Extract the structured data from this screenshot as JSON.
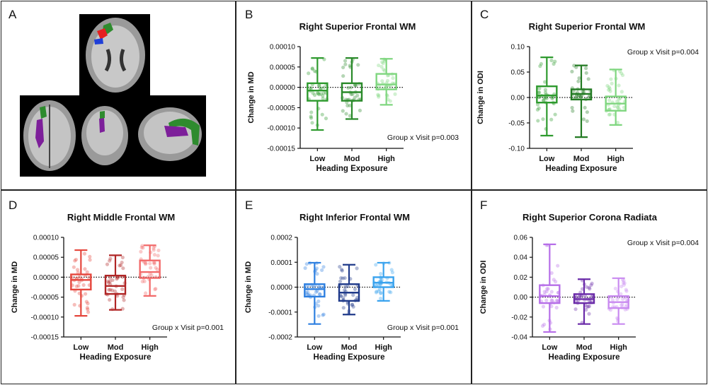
{
  "panels": [
    {
      "letter": "A"
    },
    {
      "letter": "B"
    },
    {
      "letter": "C"
    },
    {
      "letter": "D"
    },
    {
      "letter": "E"
    },
    {
      "letter": "F"
    }
  ],
  "brain_panel": {
    "description_label": "brain MRI slices",
    "highlight_colors": {
      "green": "#2e8b2e",
      "red": "#e52020",
      "blue": "#1f3fd8",
      "purple": "#7d1f9a"
    }
  },
  "chart_data": [
    {
      "panel": "B",
      "type": "box",
      "title": "Right Superior Frontal WM",
      "xlabel": "Heading Exposure",
      "ylabel": "Change in MD",
      "categories": [
        "Low",
        "Mod",
        "High"
      ],
      "ylim": [
        -0.00015,
        0.0001
      ],
      "yticks": [
        0.0001,
        5e-05,
        0.0,
        -5e-05,
        -0.0001,
        -0.00015
      ],
      "ytick_labels": [
        "0.00010",
        "0.00005",
        "0.00000",
        "-0.00005",
        "-0.00010",
        "-0.00015"
      ],
      "annotation": "Group x Visit p=0.003",
      "annotation_pos": "bottom-right",
      "colors": [
        "#2e9a2e",
        "#2a8a2a",
        "#7fd67f"
      ],
      "boxes": [
        {
          "min": -0.000105,
          "q1": -3.3e-05,
          "median": -8e-06,
          "q3": 1e-05,
          "max": 7.2e-05
        },
        {
          "min": -7.8e-05,
          "q1": -3.3e-05,
          "median": -1.2e-05,
          "q3": 1e-05,
          "max": 7.2e-05
        },
        {
          "min": -4.3e-05,
          "q1": -5e-06,
          "median": 7e-06,
          "q3": 3.3e-05,
          "max": 7e-05
        }
      ]
    },
    {
      "panel": "C",
      "type": "box",
      "title": "Right Superior Frontal WM",
      "xlabel": "Heading Exposure",
      "ylabel": "Change in ODI",
      "categories": [
        "Low",
        "Mod",
        "High"
      ],
      "ylim": [
        -0.1,
        0.1
      ],
      "yticks": [
        0.1,
        0.05,
        0.0,
        -0.05,
        -0.1
      ],
      "ytick_labels": [
        "0.10",
        "0.05",
        "0.00",
        "-0.05",
        "-0.10"
      ],
      "annotation": "Group x Visit p=0.004",
      "annotation_pos": "top-right",
      "colors": [
        "#2e9a2e",
        "#227a22",
        "#7fd67f"
      ],
      "boxes": [
        {
          "min": -0.075,
          "q1": -0.01,
          "median": 0.004,
          "q3": 0.022,
          "max": 0.079
        },
        {
          "min": -0.078,
          "q1": -0.004,
          "median": 0.007,
          "q3": 0.016,
          "max": 0.063
        },
        {
          "min": -0.054,
          "q1": -0.026,
          "median": -0.012,
          "q3": 0.002,
          "max": 0.055
        }
      ]
    },
    {
      "panel": "D",
      "type": "box",
      "title": "Right Middle Frontal WM",
      "xlabel": "Heading Exposure",
      "ylabel": "Change in MD",
      "categories": [
        "Low",
        "Mod",
        "High"
      ],
      "ylim": [
        -0.00015,
        0.0001
      ],
      "yticks": [
        0.0001,
        5e-05,
        0.0,
        -5e-05,
        -0.0001,
        -0.00015
      ],
      "ytick_labels": [
        "0.00010",
        "0.00005",
        "0.00000",
        "-0.00005",
        "-0.00010",
        "-0.00015"
      ],
      "annotation": "Group x Visit p=0.001",
      "annotation_pos": "bottom-right",
      "colors": [
        "#e5463c",
        "#b02525",
        "#f26a6a"
      ],
      "boxes": [
        {
          "min": -9.7e-05,
          "q1": -3.1e-05,
          "median": -7e-06,
          "q3": 7e-06,
          "max": 6.8e-05
        },
        {
          "min": -8.2e-05,
          "q1": -4.2e-05,
          "median": -2.2e-05,
          "q3": 4e-06,
          "max": 5.5e-05
        },
        {
          "min": -4.7e-05,
          "q1": -2e-06,
          "median": 1.3e-05,
          "q3": 4.2e-05,
          "max": 8e-05
        }
      ]
    },
    {
      "panel": "E",
      "type": "box",
      "title": "Right Inferior Frontal WM",
      "xlabel": "Heading Exposure",
      "ylabel": "Change in MD",
      "categories": [
        "Low",
        "Mod",
        "High"
      ],
      "ylim": [
        -0.0002,
        0.0002
      ],
      "yticks": [
        0.0002,
        0.0001,
        0.0,
        -0.0001,
        -0.0002
      ],
      "ytick_labels": [
        "0.0002",
        "0.0001",
        "0.0000",
        "-0.0001",
        "-0.0002"
      ],
      "annotation": "Group x Visit p=0.001",
      "annotation_pos": "bottom-right",
      "colors": [
        "#2d7fe0",
        "#1f3a8a",
        "#3aa3ee"
      ],
      "boxes": [
        {
          "min": -0.000148,
          "q1": -3.8e-05,
          "median": -8e-06,
          "q3": 1.2e-05,
          "max": 9.8e-05
        },
        {
          "min": -0.00011,
          "q1": -5.5e-05,
          "median": -2.2e-05,
          "q3": 1.2e-05,
          "max": 9e-05
        },
        {
          "min": -5.5e-05,
          "q1": 0.0,
          "median": 1.8e-05,
          "q3": 4e-05,
          "max": 9.8e-05
        }
      ]
    },
    {
      "panel": "F",
      "type": "box",
      "title": "Right Superior Corona Radiata",
      "xlabel": "Heading Exposure",
      "ylabel": "Change in ODI",
      "categories": [
        "Low",
        "Mod",
        "High"
      ],
      "ylim": [
        -0.04,
        0.06
      ],
      "yticks": [
        0.06,
        0.04,
        0.02,
        0.0,
        -0.02,
        -0.04
      ],
      "ytick_labels": [
        "0.06",
        "0.04",
        "0.02",
        "0.00",
        "-0.02",
        "-0.04"
      ],
      "annotation": "Group x Visit p=0.004",
      "annotation_pos": "top-right",
      "colors": [
        "#b66ee8",
        "#6a2aa8",
        "#c98af0"
      ],
      "boxes": [
        {
          "min": -0.035,
          "q1": -0.006,
          "median": 0.001,
          "q3": 0.012,
          "max": 0.053
        },
        {
          "min": -0.027,
          "q1": -0.006,
          "median": -0.002,
          "q3": 0.003,
          "max": 0.018
        },
        {
          "min": -0.027,
          "q1": -0.011,
          "median": -0.005,
          "q3": 0.001,
          "max": 0.019
        }
      ]
    }
  ]
}
